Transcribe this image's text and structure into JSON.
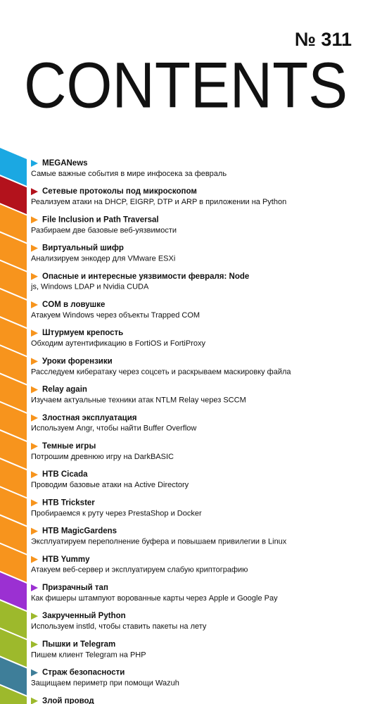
{
  "header": {
    "issue": "№ 311",
    "title": "CONTENTS"
  },
  "items": [
    {
      "title": "MEGANews",
      "description": "Самые важные события в мире инфосека за февраль",
      "color": "#1ba8e2"
    },
    {
      "title": "Сетевые протоколы под микроскопом",
      "description": "Реализуем атаки на DHCP, EIGRP, DTP и ARP в приложении на Python",
      "color": "#b3121c"
    },
    {
      "title": "File Inclusion и Path Traversal",
      "description": "Разбираем две базовые веб-уязвимости",
      "color": "#f7941d"
    },
    {
      "title": "Виртуальный шифр",
      "description": "Анализируем энкодер для VMware ESXi",
      "color": "#f7941d"
    },
    {
      "title": "Опасные и интересные уязвимости февраля: Node",
      "description": "js, Windows LDAP и Nvidia CUDA",
      "color": "#f7941d"
    },
    {
      "title": "COM в ловушке",
      "description": "Атакуем Windows через объекты Trapped COM",
      "color": "#f7941d"
    },
    {
      "title": "Штурмуем крепость",
      "description": "Обходим аутентификацию в FortiOS и FortiProxy",
      "color": "#f7941d"
    },
    {
      "title": "Уроки форензики",
      "description": "Расследуем кибератаку через соцсеть и раскрываем маскировку файла",
      "color": "#f7941d"
    },
    {
      "title": "Relay again",
      "description": "Изучаем актуальные техники атак NTLM Relay через SCCM",
      "color": "#f7941d"
    },
    {
      "title": "Злостная эксплуатация",
      "description": "Используем Angr, чтобы найти Buffer Overflow",
      "color": "#f7941d"
    },
    {
      "title": "Темные игры",
      "description": "Потрошим древнюю игру на DarkBASIC",
      "color": "#f7941d"
    },
    {
      "title": "HTB Cicada",
      "description": "Проводим базовые атаки на Active Directory",
      "color": "#f7941d"
    },
    {
      "title": "HTB Trickster",
      "description": "Пробираемся к руту через PrestaShop и Docker",
      "color": "#f7941d"
    },
    {
      "title": "HTB MagicGardens",
      "description": "Эксплуатируем переполнение буфера и повышаем привилегии в Linux",
      "color": "#f7941d"
    },
    {
      "title": "HTB Yummy",
      "description": "Атакуем веб-сервер и эксплуатируем слабую криптографию",
      "color": "#f7941d"
    },
    {
      "title": "Призрачный тап",
      "description": "Как фишеры штампуют ворованные карты через Apple и Google Pay",
      "color": "#9b30d2"
    },
    {
      "title": "Закрученный Python",
      "description": "Используем instld, чтобы ставить пакеты на лету",
      "color": "#9db92c"
    },
    {
      "title": "Пышки и Telegram",
      "description": "Пишем клиент Telegram на PHP",
      "color": "#9db92c"
    },
    {
      "title": "Страж безопасности",
      "description": "Защищаем периметр при помощи Wazuh",
      "color": "#3e7e99"
    },
    {
      "title": "Злой провод",
      "color": "#9db92c"
    }
  ]
}
